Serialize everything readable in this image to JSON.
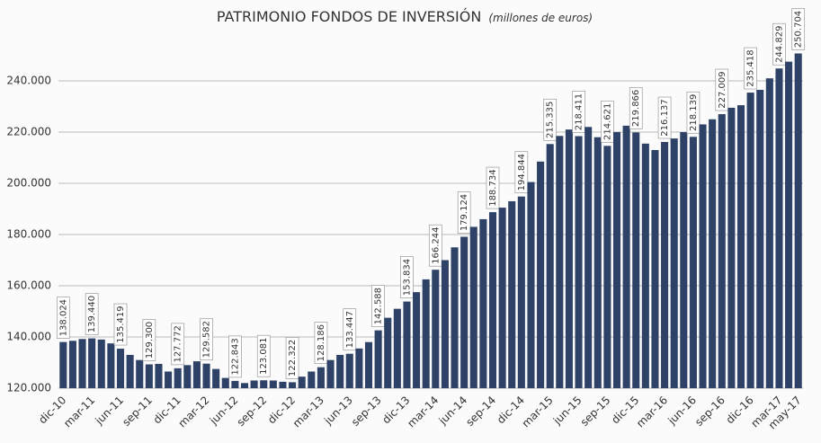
{
  "chart_data": {
    "type": "bar",
    "title": "PATRIMONIO FONDOS DE INVERSIÓN",
    "subtitle": "(millones de euros)",
    "categories": [
      "dic-10",
      null,
      null,
      "mar-11",
      null,
      null,
      "jun-11",
      null,
      null,
      "sep-11",
      null,
      null,
      "dic-11",
      null,
      null,
      "mar-12",
      null,
      null,
      "jun-12",
      null,
      null,
      "sep-12",
      null,
      null,
      "dic-12",
      null,
      null,
      "mar-13",
      null,
      null,
      "jun-13",
      null,
      null,
      "sep-13",
      null,
      null,
      "dic-13",
      null,
      null,
      "mar-14",
      null,
      null,
      "jun-14",
      null,
      null,
      "sep-14",
      null,
      null,
      "dic-14",
      null,
      null,
      "mar-15",
      null,
      null,
      "jun-15",
      null,
      null,
      "sep-15",
      null,
      null,
      "dic-15",
      null,
      null,
      "mar-16",
      null,
      null,
      "jun-16",
      null,
      null,
      "sep-16",
      null,
      null,
      "dic-16",
      null,
      null,
      "mar-17",
      null,
      "may-17"
    ],
    "values": [
      138024,
      138500,
      139200,
      139440,
      139000,
      137500,
      135419,
      133000,
      131000,
      129300,
      129500,
      126500,
      127772,
      129000,
      130500,
      129582,
      127500,
      124000,
      122843,
      122000,
      123000,
      123081,
      123000,
      122500,
      122322,
      124500,
      126500,
      128186,
      131000,
      133000,
      133447,
      135500,
      138000,
      142588,
      147500,
      151000,
      153834,
      157500,
      162500,
      166244,
      170000,
      175000,
      179124,
      183000,
      186000,
      188734,
      190500,
      193000,
      194844,
      200500,
      208500,
      215335,
      218500,
      221000,
      218411,
      222000,
      218000,
      214621,
      220000,
      222500,
      219866,
      215500,
      213000,
      216137,
      217500,
      220000,
      218139,
      223000,
      225000,
      227009,
      229500,
      230500,
      235418,
      236500,
      241000,
      244829,
      247500,
      250704
    ],
    "value_labels": [
      "138.024",
      null,
      null,
      "139.440",
      null,
      null,
      "135.419",
      null,
      null,
      "129.300",
      null,
      null,
      "127.772",
      null,
      null,
      "129.582",
      null,
      null,
      "122.843",
      null,
      null,
      "123.081",
      null,
      null,
      "122.322",
      null,
      null,
      "128.186",
      null,
      null,
      "133.447",
      null,
      null,
      "142.588",
      null,
      null,
      "153.834",
      null,
      null,
      "166.244",
      null,
      null,
      "179.124",
      null,
      null,
      "188.734",
      null,
      null,
      "194.844",
      null,
      null,
      "215.335",
      null,
      null,
      "218.411",
      null,
      null,
      "214.621",
      null,
      null,
      "219.866",
      null,
      null,
      "216.137",
      null,
      null,
      "218.139",
      null,
      null,
      "227.009",
      null,
      null,
      "235.418",
      null,
      null,
      "244.829",
      null,
      "250.704"
    ],
    "color": "#2d4266",
    "ylim": [
      120000,
      260000
    ],
    "yticks": [
      {
        "value": 120000,
        "label": "120.000"
      },
      {
        "value": 140000,
        "label": "140.000"
      },
      {
        "value": 160000,
        "label": "160.000"
      },
      {
        "value": 180000,
        "label": "180.000"
      },
      {
        "value": 200000,
        "label": "200.000"
      },
      {
        "value": 220000,
        "label": "220.000"
      },
      {
        "value": 240000,
        "label": "240.000"
      }
    ],
    "grid": true
  }
}
